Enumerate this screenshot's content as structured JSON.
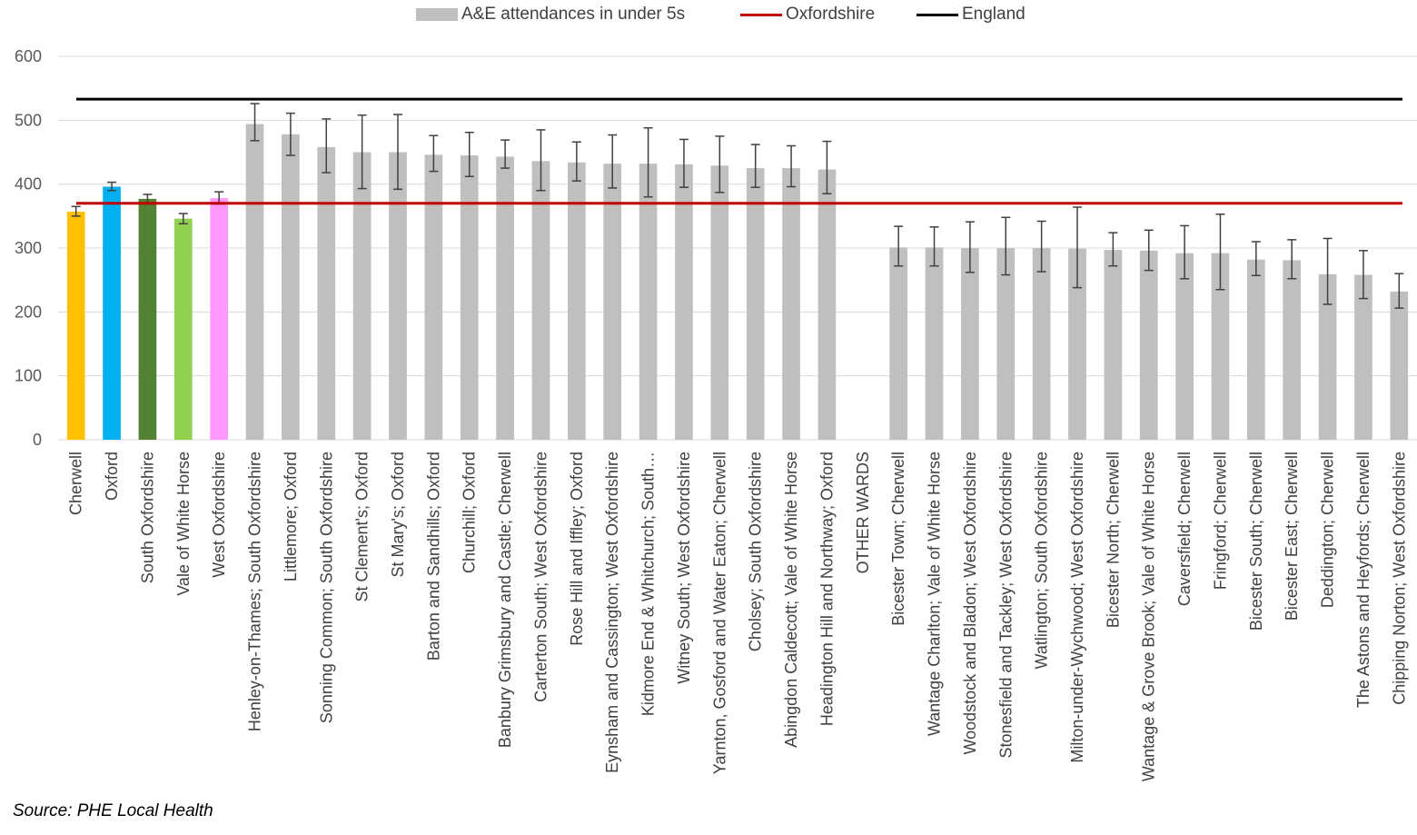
{
  "legend": {
    "bar_label": "A&E attendances in under 5s",
    "oxon_label": "Oxfordshire",
    "england_label": "England"
  },
  "source": "Source: PHE Local Health",
  "colors": {
    "bar_default": "#bfbfbf",
    "oxfordshire_line": "#c00000",
    "england_line": "#000000",
    "error_bar": "#404040",
    "grid": "#d9d9d9"
  },
  "chart_data": {
    "type": "bar",
    "ylim": [
      0,
      600
    ],
    "yticks": [
      "0",
      "100",
      "200",
      "300",
      "400",
      "500",
      "600"
    ],
    "grid": true,
    "legend_position": "top",
    "reference_lines": [
      {
        "name": "Oxfordshire",
        "value": 370
      },
      {
        "name": "England",
        "value": 533
      }
    ],
    "categories": [
      "Cherwell",
      "Oxford",
      "South Oxfordshire",
      "Vale of White Horse",
      "West Oxfordshire",
      "Henley-on-Thames; South Oxfordshire",
      "Littlemore; Oxford",
      "Sonning Common; South Oxfordshire",
      "St Clement's; Oxford",
      "St Mary's; Oxford",
      "Barton and Sandhills; Oxford",
      "Churchill; Oxford",
      "Banbury Grimsbury and Castle; Cherwell",
      "Carterton South; West Oxfordshire",
      "Rose Hill and Iffley; Oxford",
      "Eynsham and Cassington; West Oxfordshire",
      "Kidmore End & Whitchurch; South…",
      "Witney South; West Oxfordshire",
      "Yarnton, Gosford and Water Eaton; Cherwell",
      "Cholsey; South Oxfordshire",
      "Abingdon Caldecott; Vale of White Horse",
      "Headington Hill and Northway; Oxford",
      "OTHER WARDS",
      "Bicester Town; Cherwell",
      "Wantage Charlton; Vale of White Horse",
      "Woodstock and Bladon; West Oxfordshire",
      "Stonesfield and Tackley; West Oxfordshire",
      "Watlington; South Oxfordshire",
      "Milton-under-Wychwood; West Oxfordshire",
      "Bicester North; Cherwell",
      "Wantage & Grove Brook; Vale of White Horse",
      "Caversfield; Cherwell",
      "Fringford; Cherwell",
      "Bicester South; Cherwell",
      "Bicester East; Cherwell",
      "Deddington; Cherwell",
      "The Astons and Heyfords; Cherwell",
      "Chipping Norton; West Oxfordshire"
    ],
    "series": [
      {
        "name": "A&E attendances in under 5s",
        "values": [
          357,
          396,
          377,
          346,
          378,
          494,
          478,
          458,
          450,
          450,
          446,
          445,
          443,
          436,
          434,
          432,
          432,
          431,
          429,
          425,
          425,
          423,
          null,
          301,
          301,
          300,
          300,
          300,
          299,
          297,
          296,
          292,
          292,
          282,
          281,
          259,
          258,
          232
        ],
        "error_low": [
          350,
          390,
          370,
          338,
          369,
          468,
          445,
          418,
          393,
          392,
          420,
          412,
          425,
          390,
          405,
          394,
          380,
          395,
          387,
          395,
          396,
          385,
          null,
          272,
          272,
          262,
          258,
          263,
          238,
          272,
          265,
          252,
          235,
          257,
          252,
          212,
          221,
          206
        ],
        "error_high": [
          365,
          403,
          384,
          354,
          388,
          526,
          511,
          502,
          508,
          509,
          476,
          481,
          469,
          485,
          466,
          477,
          488,
          470,
          475,
          462,
          460,
          467,
          null,
          334,
          333,
          341,
          348,
          342,
          364,
          324,
          328,
          335,
          353,
          310,
          313,
          315,
          296,
          260
        ],
        "bar_colors": [
          "#ffc000",
          "#00b0f0",
          "#548235",
          "#92d050",
          "#ff99ff"
        ]
      }
    ]
  }
}
